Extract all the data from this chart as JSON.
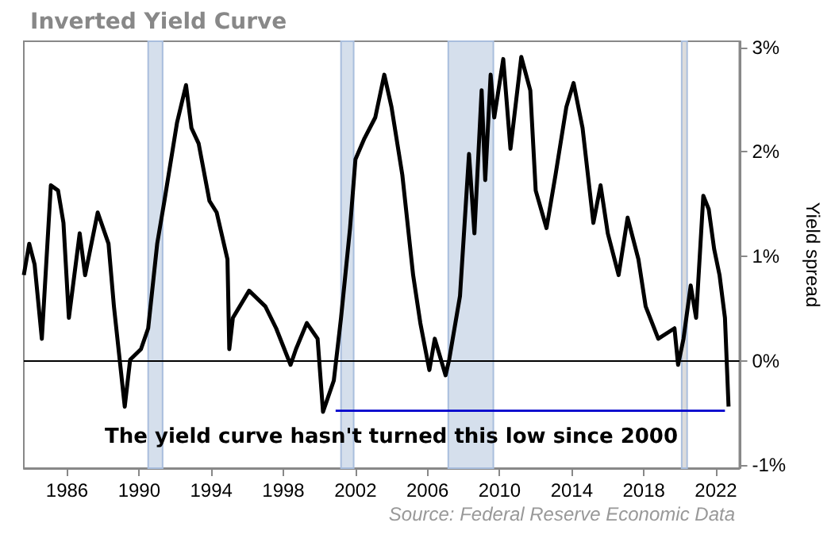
{
  "chart_data": {
    "type": "line",
    "title": "Inverted Yield Curve",
    "y2label": "Yield spread",
    "xlim": [
      1983.6,
      2023.3
    ],
    "xticks": [
      1986,
      1990,
      1994,
      1998,
      2002,
      2006,
      2010,
      2014,
      2018,
      2022
    ],
    "y2lim": [
      -1.03,
      3.06
    ],
    "y2ticks": [
      {
        "value": -1,
        "label": "-1%"
      },
      {
        "value": 0,
        "label": "0%"
      },
      {
        "value": 1,
        "label": "1%"
      },
      {
        "value": 2,
        "label": "2%"
      },
      {
        "value": 3,
        "label": "3%"
      }
    ],
    "grid": false,
    "marker": "none",
    "line_style": "solid",
    "series": [
      {
        "color": "#000000",
        "axis": "y2",
        "x": [
          1983.6,
          1983.9,
          1984.2,
          1984.6,
          1985.1,
          1985.5,
          1985.8,
          1986.1,
          1986.7,
          1987.0,
          1987.7,
          1988.3,
          1988.6,
          1989.2,
          1989.5,
          1990.1,
          1990.5,
          1991.0,
          1991.4,
          1992.1,
          1992.6,
          1992.9,
          1993.3,
          1993.9,
          1994.3,
          1994.9,
          1995.0,
          1995.2,
          1996.1,
          1997.0,
          1997.6,
          1998.4,
          1998.7,
          1999.3,
          1999.9,
          2000.2,
          2000.8,
          2001.2,
          2001.7,
          2002.0,
          2002.5,
          2003.1,
          2003.6,
          2004.0,
          2004.6,
          2005.2,
          2005.6,
          2006.1,
          2006.4,
          2007.0,
          2007.2,
          2007.8,
          2008.3,
          2008.6,
          2009.0,
          2009.2,
          2009.5,
          2009.7,
          2010.2,
          2010.6,
          2011.2,
          2011.7,
          2012.0,
          2012.6,
          2013.1,
          2013.7,
          2014.1,
          2014.6,
          2015.2,
          2015.6,
          2016.0,
          2016.6,
          2017.1,
          2017.7,
          2018.1,
          2018.8,
          2019.7,
          2019.9,
          2020.2,
          2020.6,
          2020.9,
          2021.3,
          2021.6,
          2021.9,
          2022.2,
          2022.5,
          2022.7
        ],
        "values": [
          0.82,
          1.12,
          0.92,
          0.21,
          1.68,
          1.63,
          1.32,
          0.41,
          1.22,
          0.82,
          1.42,
          1.12,
          0.52,
          -0.44,
          0.01,
          0.11,
          0.31,
          1.12,
          1.53,
          2.28,
          2.64,
          2.23,
          2.08,
          1.53,
          1.42,
          0.97,
          0.11,
          0.41,
          0.67,
          0.52,
          0.31,
          -0.04,
          0.11,
          0.36,
          0.21,
          -0.49,
          -0.19,
          0.41,
          1.27,
          1.93,
          2.13,
          2.33,
          2.74,
          2.43,
          1.78,
          0.82,
          0.36,
          -0.09,
          0.21,
          -0.14,
          0.01,
          0.62,
          1.98,
          1.22,
          2.59,
          1.73,
          2.74,
          2.33,
          2.89,
          2.03,
          2.91,
          2.59,
          1.63,
          1.27,
          1.78,
          2.43,
          2.66,
          2.23,
          1.32,
          1.68,
          1.22,
          0.82,
          1.37,
          0.97,
          0.52,
          0.21,
          0.31,
          -0.04,
          0.21,
          0.72,
          0.41,
          1.58,
          1.45,
          1.07,
          0.82,
          0.41,
          -0.44
        ]
      },
      {
        "color": "#0000cc",
        "axis": "y2",
        "x": [
          2000.9,
          2022.5
        ],
        "values": [
          -0.48,
          -0.48
        ]
      }
    ],
    "ref_lines": [
      {
        "axis": "y2",
        "value": 0,
        "color": "#000000"
      }
    ],
    "bands": [
      {
        "axis": "x",
        "from": 1990.5,
        "to": 1991.3,
        "color": "#d5dfec"
      },
      {
        "axis": "x",
        "from": 2001.2,
        "to": 2001.9,
        "color": "#d5dfec"
      },
      {
        "axis": "x",
        "from": 2007.15,
        "to": 2009.65,
        "color": "#d5dfec"
      },
      {
        "axis": "x",
        "from": 2020.1,
        "to": 2020.4,
        "color": "#dcdcdc"
      }
    ],
    "annotations": [
      "The yield curve hasn't turned this low since 2000",
      "Source: Federal Reserve Economic Data"
    ]
  }
}
